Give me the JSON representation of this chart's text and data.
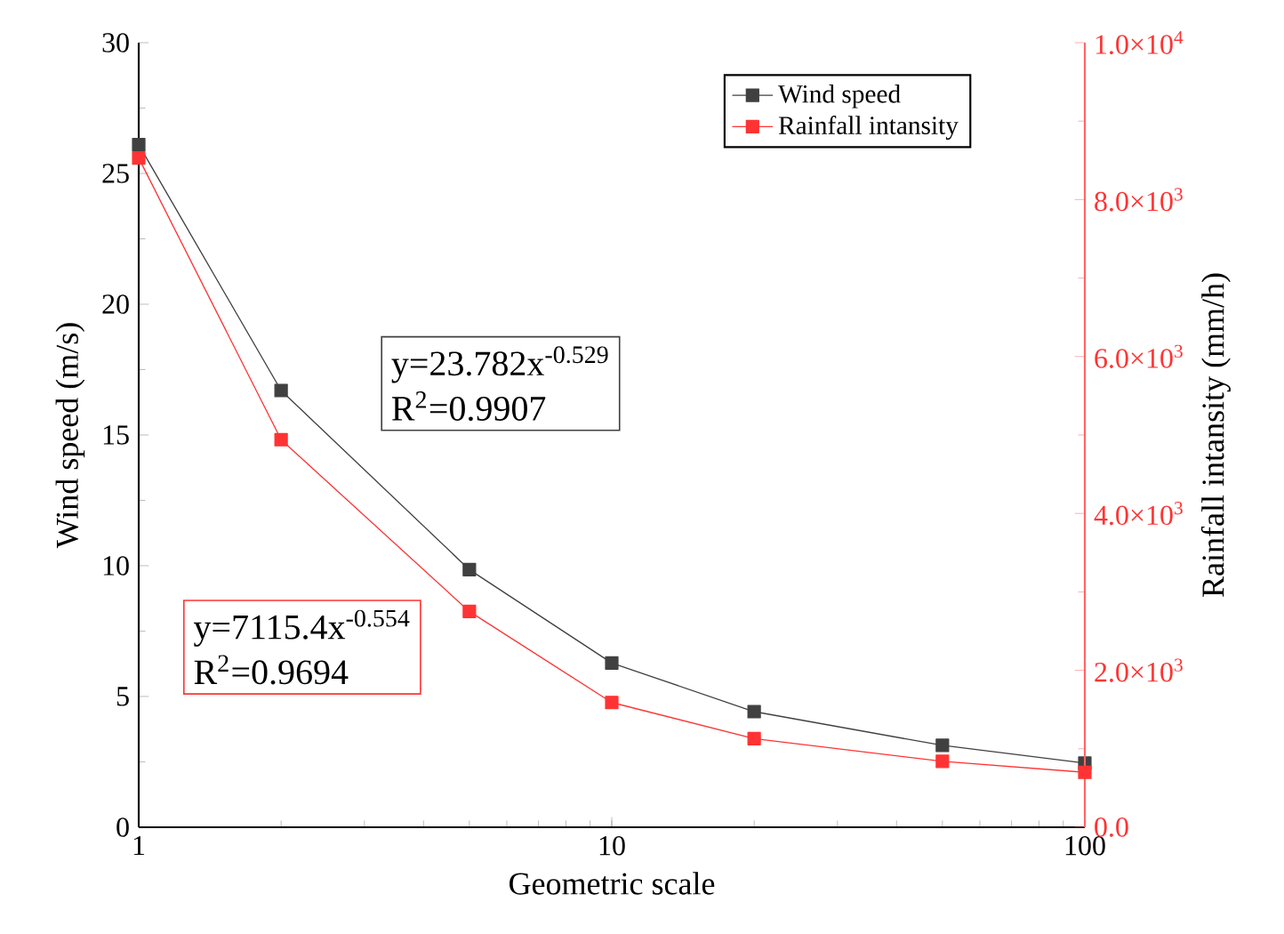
{
  "chart_data": {
    "type": "line",
    "xlabel": "Geometric scale",
    "ylabel": "Wind speed (m/s)",
    "y2label": "Rainfall intansity (mm/h)",
    "log": "x",
    "x": [
      1,
      2,
      5,
      10,
      20,
      50,
      100
    ],
    "xlim": [
      1,
      100
    ],
    "xticks": [
      1,
      10,
      100
    ],
    "ylim": [
      0,
      30
    ],
    "yticks": [
      0,
      5,
      10,
      15,
      20,
      25,
      30
    ],
    "y2lim": [
      0,
      10000
    ],
    "y2ticks": [
      {
        "value": 0,
        "label": "0.0"
      },
      {
        "value": 2000,
        "label": "2.0×10$^{3}$"
      },
      {
        "value": 4000,
        "label": "4.0×10$^{3}$"
      },
      {
        "value": 6000,
        "label": "6.0×10$^{3}$"
      },
      {
        "value": 8000,
        "label": "8.0×10$^{3}$"
      },
      {
        "value": 10000,
        "label": "1.0×10$^{4}$"
      }
    ],
    "series": [
      {
        "name": "Wind speed",
        "color": "#404040",
        "values": [
          26.1,
          16.7,
          9.85,
          6.28,
          4.42,
          3.13,
          2.45
        ]
      },
      {
        "name": "Rainfall intansity",
        "color": "#ff3333",
        "axis": "y2",
        "values": [
          8530,
          4940,
          2750,
          1590,
          1130,
          840,
          700
        ]
      }
    ],
    "marker": "square",
    "line_style": "solid",
    "legend": "top right",
    "grid": false,
    "annotations": [
      "y=23.782x$^{-0.529}$",
      "R$^{2}$=0.9907",
      "y=7115.4x$^{-0.554}$",
      "R$^{2}$=0.9694"
    ]
  }
}
